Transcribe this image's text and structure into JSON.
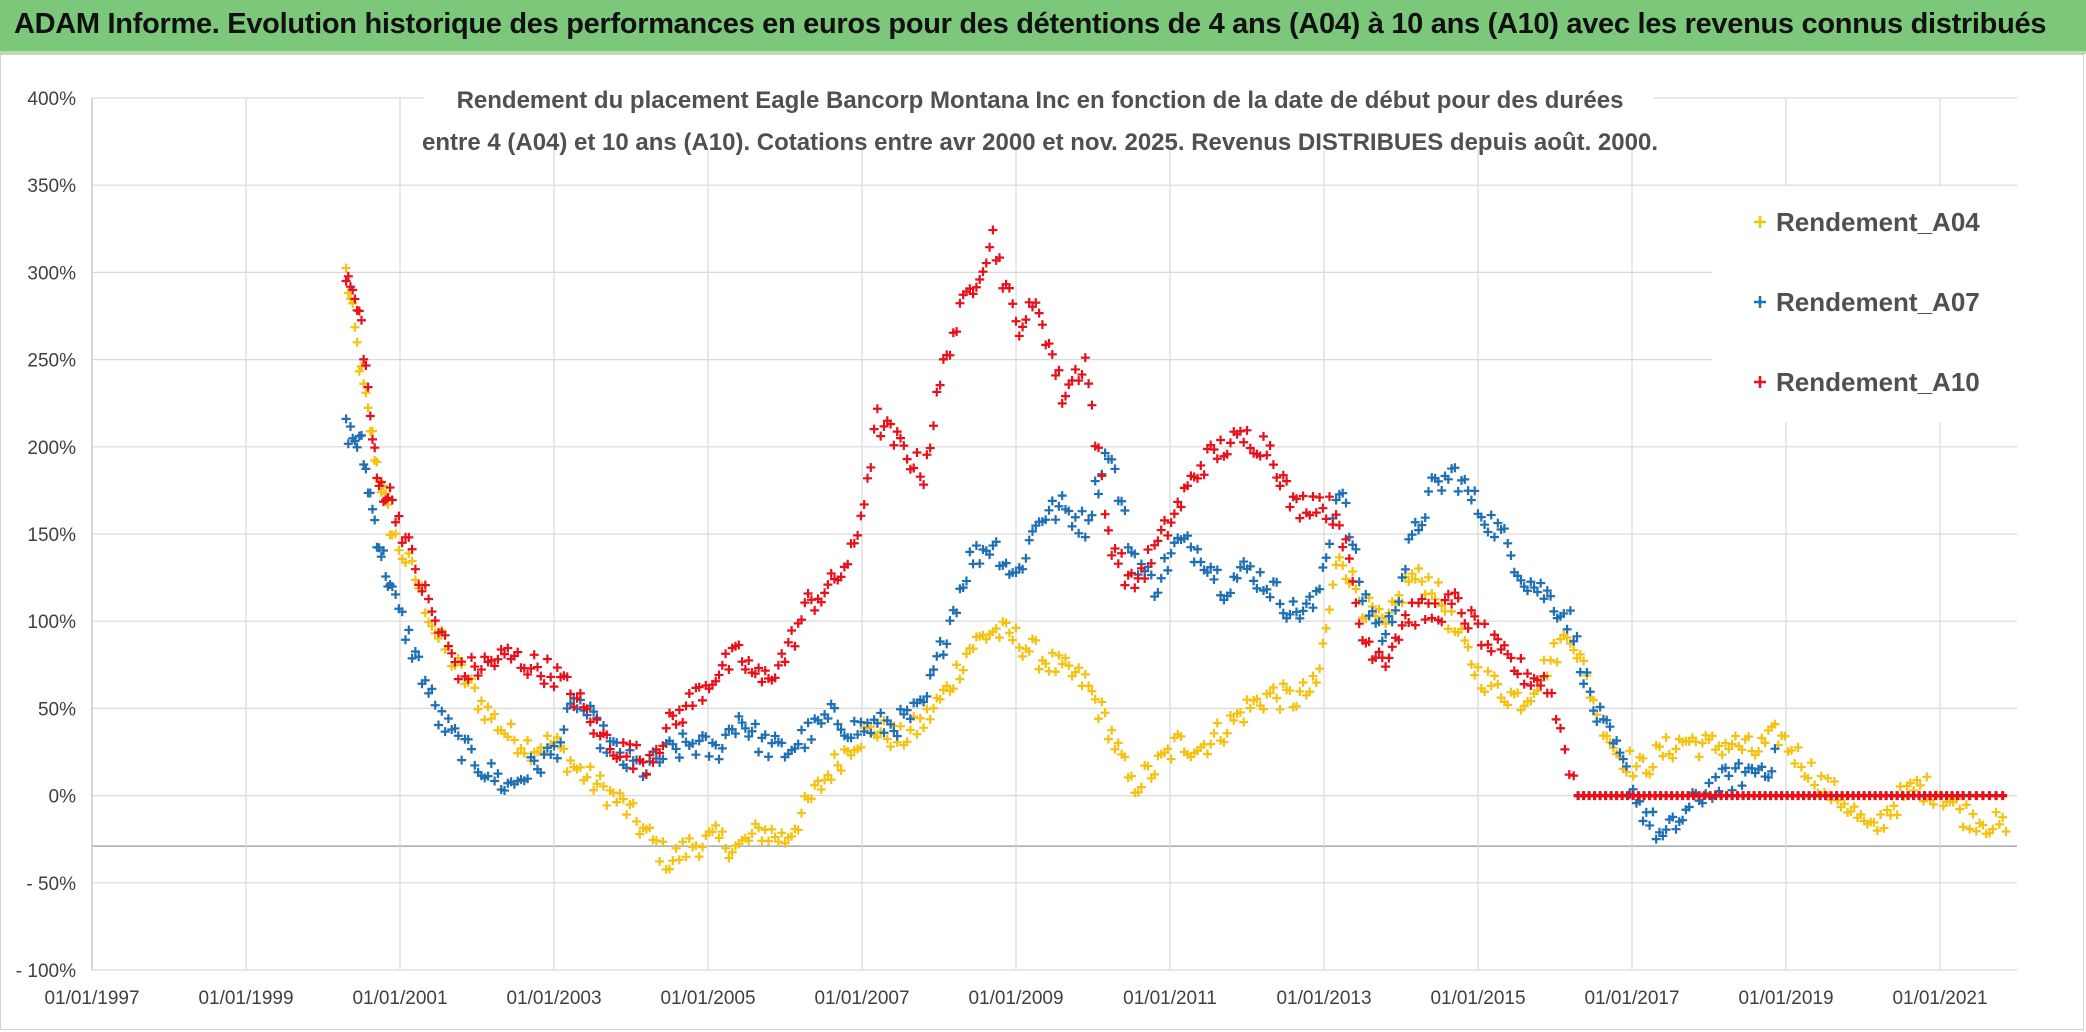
{
  "header": {
    "banner": "ADAM Informe. Evolution historique des performances en euros pour des détentions de 4 ans (A04) à 10 ans (A10) avec les revenus connus distribués"
  },
  "colors": {
    "banner_bg": "#7cc87a",
    "A04": "#f5c211",
    "A07": "#1f6fb5",
    "A10": "#e8101a",
    "grid": "#d9d9d9"
  },
  "chart_data": {
    "type": "scatter",
    "title_line1": "Rendement du placement Eagle Bancorp Montana Inc en fonction de la date de début pour des durées",
    "title_line2": "entre 4 (A04) et 10 ans (A10). Cotations entre avr 2000 et nov. 2025. Revenus DISTRIBUES depuis août. 2000.",
    "xlabel": "",
    "ylabel": "",
    "x_range": [
      "1997-01-01",
      "2021-12-31"
    ],
    "x_ticks": [
      "01/01/1997",
      "01/01/1999",
      "01/01/2001",
      "01/01/2003",
      "01/01/2005",
      "01/01/2007",
      "01/01/2009",
      "01/01/2011",
      "01/01/2013",
      "01/01/2015",
      "01/01/2017",
      "01/01/2019",
      "01/01/2021"
    ],
    "ylim": [
      -100,
      400
    ],
    "y_ticks": [
      "400%",
      "350%",
      "300%",
      "250%",
      "200%",
      "150%",
      "100%",
      "50%",
      "0%",
      "- 50%",
      "- 100%"
    ],
    "y_tick_values": [
      400,
      350,
      300,
      250,
      200,
      150,
      100,
      50,
      0,
      -50,
      -100
    ],
    "legend_position": "top-right",
    "series": [
      {
        "name": "Rendement_A04",
        "x": [
          2000.3,
          2000.5,
          2000.7,
          2000.9,
          2001.2,
          2001.5,
          2001.8,
          2002.1,
          2002.4,
          2002.7,
          2003.0,
          2003.3,
          2003.6,
          2003.9,
          2004.2,
          2004.5,
          2004.8,
          2005.1,
          2005.4,
          2005.7,
          2006.0,
          2006.3,
          2006.6,
          2006.9,
          2007.2,
          2007.5,
          2007.8,
          2008.1,
          2008.4,
          2008.7,
          2009.0,
          2009.3,
          2009.6,
          2009.9,
          2010.2,
          2010.5,
          2010.8,
          2011.1,
          2011.4,
          2011.7,
          2012.0,
          2012.3,
          2012.6,
          2012.9,
          2013.2,
          2013.5,
          2013.8,
          2014.1,
          2014.4,
          2014.7,
          2015.0,
          2015.3,
          2015.6,
          2015.9,
          2016.2,
          2016.5,
          2016.8,
          2017.1,
          2017.4,
          2017.7,
          2018.0,
          2018.3,
          2018.6,
          2018.9,
          2019.2,
          2019.5,
          2019.8,
          2020.1,
          2020.4,
          2020.7,
          2021.0,
          2021.3,
          2021.6,
          2021.9
        ],
        "values": [
          300,
          240,
          190,
          150,
          125,
          90,
          70,
          50,
          35,
          28,
          30,
          15,
          5,
          -5,
          -22,
          -38,
          -28,
          -25,
          -30,
          -20,
          -25,
          -5,
          15,
          32,
          38,
          32,
          42,
          60,
          85,
          95,
          90,
          80,
          72,
          65,
          40,
          5,
          15,
          30,
          28,
          38,
          50,
          58,
          55,
          62,
          140,
          110,
          95,
          125,
          122,
          95,
          70,
          60,
          55,
          75,
          95,
          55,
          25,
          15,
          25,
          32,
          28,
          30,
          25,
          35,
          20,
          5,
          -5,
          -22,
          -5,
          5,
          2,
          -10,
          -15,
          -20
        ]
      },
      {
        "name": "Rendement_A07",
        "x": [
          2000.3,
          2000.5,
          2000.7,
          2000.9,
          2001.2,
          2001.5,
          2001.8,
          2002.1,
          2002.4,
          2002.7,
          2003.0,
          2003.3,
          2003.6,
          2003.9,
          2004.2,
          2004.5,
          2004.8,
          2005.1,
          2005.4,
          2005.7,
          2006.0,
          2006.3,
          2006.6,
          2006.9,
          2007.2,
          2007.5,
          2007.8,
          2008.1,
          2008.4,
          2008.7,
          2009.0,
          2009.3,
          2009.6,
          2009.9,
          2010.2,
          2010.5,
          2010.8,
          2011.1,
          2011.4,
          2011.7,
          2012.0,
          2012.3,
          2012.6,
          2012.9,
          2013.2,
          2013.5,
          2013.8,
          2014.1,
          2014.4,
          2014.7,
          2015.0,
          2015.3,
          2015.6,
          2015.9,
          2016.2,
          2016.5,
          2016.8,
          2017.1,
          2017.4,
          2017.7,
          2018.0,
          2018.3,
          2018.6,
          2018.9
        ],
        "values": [
          210,
          200,
          150,
          115,
          80,
          45,
          28,
          15,
          5,
          15,
          25,
          55,
          35,
          20,
          15,
          25,
          30,
          25,
          45,
          30,
          25,
          35,
          45,
          38,
          40,
          42,
          50,
          95,
          135,
          145,
          125,
          160,
          165,
          155,
          200,
          140,
          120,
          145,
          140,
          120,
          130,
          120,
          105,
          110,
          180,
          115,
          90,
          140,
          175,
          185,
          165,
          150,
          125,
          115,
          100,
          50,
          25,
          -5,
          -25,
          -10,
          5,
          10,
          15,
          20
        ]
      },
      {
        "name": "Rendement_A10",
        "x": [
          2000.3,
          2000.5,
          2000.7,
          2000.9,
          2001.2,
          2001.5,
          2001.8,
          2002.1,
          2002.4,
          2002.7,
          2003.0,
          2003.3,
          2003.6,
          2003.9,
          2004.2,
          2004.5,
          2004.8,
          2005.1,
          2005.4,
          2005.7,
          2006.0,
          2006.3,
          2006.6,
          2006.9,
          2007.2,
          2007.5,
          2007.8,
          2008.1,
          2008.4,
          2008.7,
          2009.0,
          2009.3,
          2009.6,
          2009.9,
          2010.2,
          2010.5,
          2010.8,
          2011.1,
          2011.4,
          2011.7,
          2012.0,
          2012.3,
          2012.6,
          2012.9,
          2013.2,
          2013.5,
          2013.8,
          2014.1,
          2014.4,
          2014.7,
          2015.0,
          2015.3,
          2015.6,
          2015.9,
          2016.3,
          2016.8,
          2017.3,
          2017.8,
          2018.3,
          2018.8,
          2019.3,
          2019.8,
          2020.3,
          2020.8,
          2021.3,
          2021.9
        ],
        "values": [
          300,
          270,
          180,
          170,
          130,
          95,
          70,
          75,
          80,
          75,
          70,
          55,
          35,
          25,
          20,
          40,
          55,
          70,
          80,
          65,
          80,
          110,
          120,
          140,
          215,
          200,
          185,
          255,
          290,
          320,
          270,
          280,
          230,
          250,
          150,
          120,
          140,
          165,
          190,
          200,
          205,
          200,
          165,
          170,
          160,
          90,
          80,
          105,
          105,
          110,
          95,
          80,
          70,
          65,
          0,
          0,
          0,
          0,
          0,
          0,
          0,
          0,
          0,
          0,
          0,
          0
        ]
      }
    ]
  }
}
